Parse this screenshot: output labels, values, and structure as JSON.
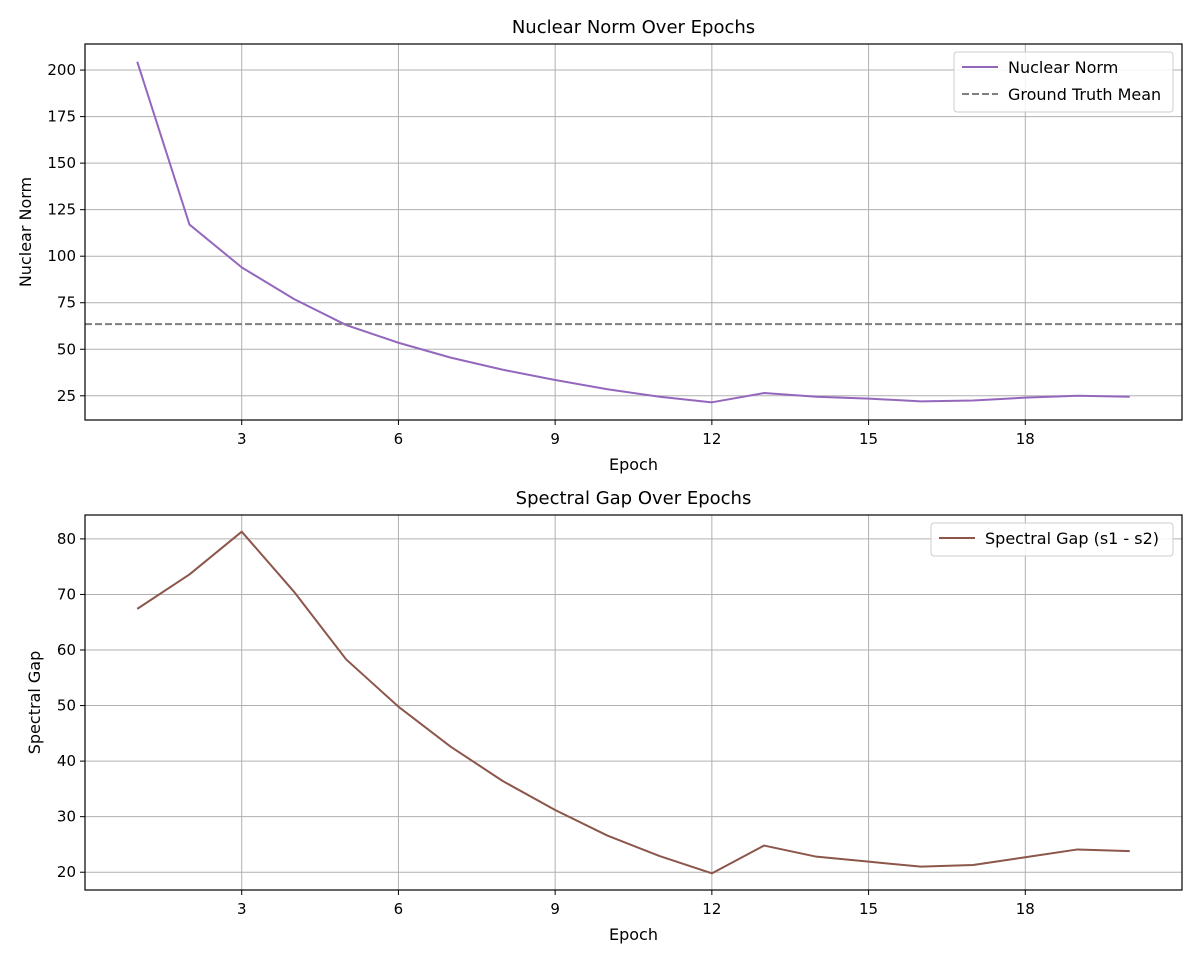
{
  "chart_data": [
    {
      "type": "line",
      "title": "Nuclear Norm Over Epochs",
      "xlabel": "Epoch",
      "ylabel": "Nuclear Norm",
      "xlim": [
        0,
        21
      ],
      "ylim": [
        12,
        214
      ],
      "xticks": [
        3,
        6,
        9,
        12,
        15,
        18
      ],
      "yticks": [
        25,
        50,
        75,
        100,
        125,
        150,
        175,
        200
      ],
      "grid": true,
      "legend_position": "top-right",
      "series": [
        {
          "name": "Nuclear Norm",
          "color": "#9467bd",
          "style": "solid",
          "x": [
            1,
            2,
            3,
            4,
            5,
            6,
            7,
            8,
            9,
            10,
            11,
            12,
            13,
            14,
            15,
            16,
            17,
            18,
            19,
            20
          ],
          "y": [
            204.5,
            117,
            94,
            77,
            63,
            53.5,
            45.5,
            39,
            33.5,
            28.5,
            24.5,
            21.5,
            26.5,
            24.5,
            23.5,
            22,
            22.5,
            24,
            25,
            24.5
          ]
        },
        {
          "name": "Ground Truth Mean",
          "color": "#7f7f7f",
          "style": "dashed",
          "y_constant": 63.5
        }
      ]
    },
    {
      "type": "line",
      "title": "Spectral Gap Over Epochs",
      "xlabel": "Epoch",
      "ylabel": "Spectral Gap",
      "xlim": [
        0,
        21
      ],
      "ylim": [
        16.8,
        84.3
      ],
      "xticks": [
        3,
        6,
        9,
        12,
        15,
        18
      ],
      "yticks": [
        20,
        30,
        40,
        50,
        60,
        70,
        80
      ],
      "grid": true,
      "legend_position": "top-right",
      "series": [
        {
          "name": "Spectral Gap (s1 - s2)",
          "color": "#8c564b",
          "style": "solid",
          "x": [
            1,
            2,
            3,
            4,
            5,
            6,
            7,
            8,
            9,
            10,
            11,
            12,
            13,
            14,
            15,
            16,
            17,
            18,
            19,
            20
          ],
          "y": [
            67.4,
            73.6,
            81.3,
            70.5,
            58.3,
            49.8,
            42.6,
            36.4,
            31.2,
            26.6,
            22.9,
            19.8,
            24.8,
            22.8,
            21.9,
            21,
            21.3,
            22.7,
            24.1,
            23.8
          ]
        }
      ]
    }
  ]
}
